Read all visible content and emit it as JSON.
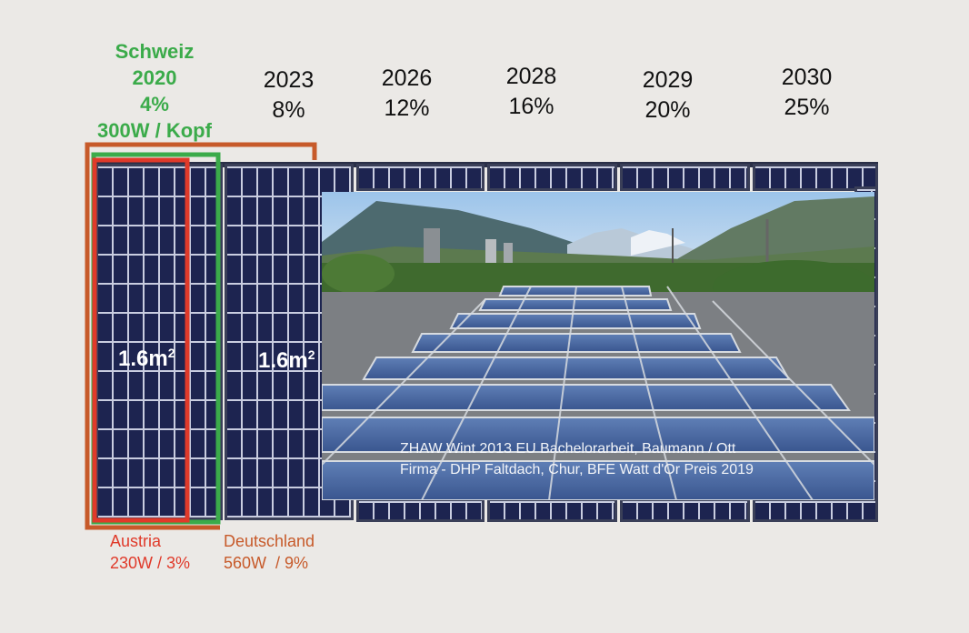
{
  "schweiz": {
    "country": "Schweiz",
    "year": "2020",
    "percent": "4%",
    "per_capita": "300W / Kopf"
  },
  "milestones": [
    {
      "year": "2023",
      "percent": "8%"
    },
    {
      "year": "2026",
      "percent": "12%"
    },
    {
      "year": "2028",
      "percent": "16%"
    },
    {
      "year": "2029",
      "percent": "20%"
    },
    {
      "year": "2030",
      "percent": "25%"
    }
  ],
  "panel_area_1": "1.6m",
  "panel_area_2": "1.6m",
  "area_exponent": "2",
  "photo_caption": {
    "line1": "ZHAW Wint 2013 EU Bachelorarbeit, Baumann / Ott",
    "line2": "Firma - DHP Faltdach, Chur, BFE Watt d'Or Preis 2019"
  },
  "austria": {
    "name": "Austria",
    "value": "230W / 3%"
  },
  "deutschland": {
    "name": "Deutschland",
    "value": "560W  / 9%"
  },
  "colors": {
    "schweiz_green": "#3bab4a",
    "austria_red": "#e03a2a",
    "deutschland_brown": "#c75a2a",
    "panel_blue": "#1d2450"
  }
}
